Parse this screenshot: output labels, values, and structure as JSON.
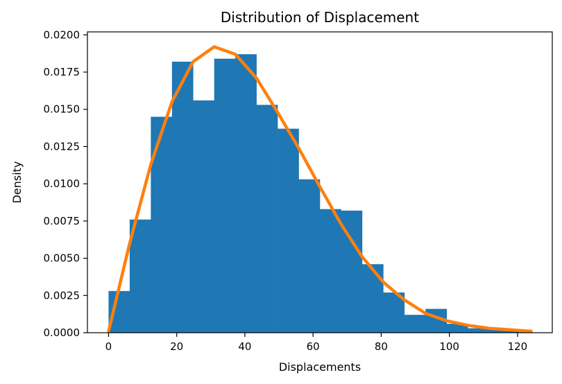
{
  "chart_data": {
    "type": "bar",
    "title": "Distribution of Displacement",
    "xlabel": "Displacements",
    "ylabel": "Density",
    "xlim": [
      -6.2,
      130.2
    ],
    "ylim": [
      0,
      0.0202
    ],
    "grid": false,
    "xticks": [
      0,
      20,
      40,
      60,
      80,
      100,
      120
    ],
    "xtick_labels": [
      "0",
      "20",
      "40",
      "60",
      "80",
      "100",
      "120"
    ],
    "yticks": [
      0,
      0.0025,
      0.005,
      0.0075,
      0.01,
      0.0125,
      0.015,
      0.0175,
      0.02
    ],
    "ytick_labels": [
      "0.0000",
      "0.0025",
      "0.0050",
      "0.0075",
      "0.0100",
      "0.0125",
      "0.0150",
      "0.0175",
      "0.0200"
    ],
    "colors": {
      "bars": "#1f77b4",
      "curve": "#ff7f0e"
    },
    "histogram": {
      "bin_edges": [
        0,
        6.2,
        12.4,
        18.6,
        24.8,
        31,
        37.2,
        43.4,
        49.6,
        55.8,
        62,
        68.2,
        74.4,
        80.6,
        86.8,
        93,
        99.2,
        105.4,
        111.6,
        117.8,
        124
      ],
      "values": [
        0.0028,
        0.0076,
        0.0145,
        0.0182,
        0.0156,
        0.0184,
        0.0187,
        0.0153,
        0.0137,
        0.0103,
        0.0083,
        0.0082,
        0.0046,
        0.0027,
        0.0012,
        0.0016,
        0.0006,
        0.0003,
        0.0003,
        0.0001
      ]
    },
    "curve": {
      "x": [
        0,
        6.2,
        12.4,
        18.6,
        24.8,
        31,
        37.2,
        43.4,
        49.6,
        55.8,
        62,
        68.2,
        74.4,
        80.6,
        86.8,
        93,
        99.2,
        105.4,
        111.6,
        117.8,
        124
      ],
      "y": [
        0.0001,
        0.006,
        0.0113,
        0.0155,
        0.0182,
        0.0192,
        0.0187,
        0.0171,
        0.0148,
        0.0124,
        0.0098,
        0.0073,
        0.0051,
        0.0034,
        0.0022,
        0.0013,
        0.0008,
        0.0005,
        0.0003,
        0.0002,
        0.0001
      ]
    }
  }
}
